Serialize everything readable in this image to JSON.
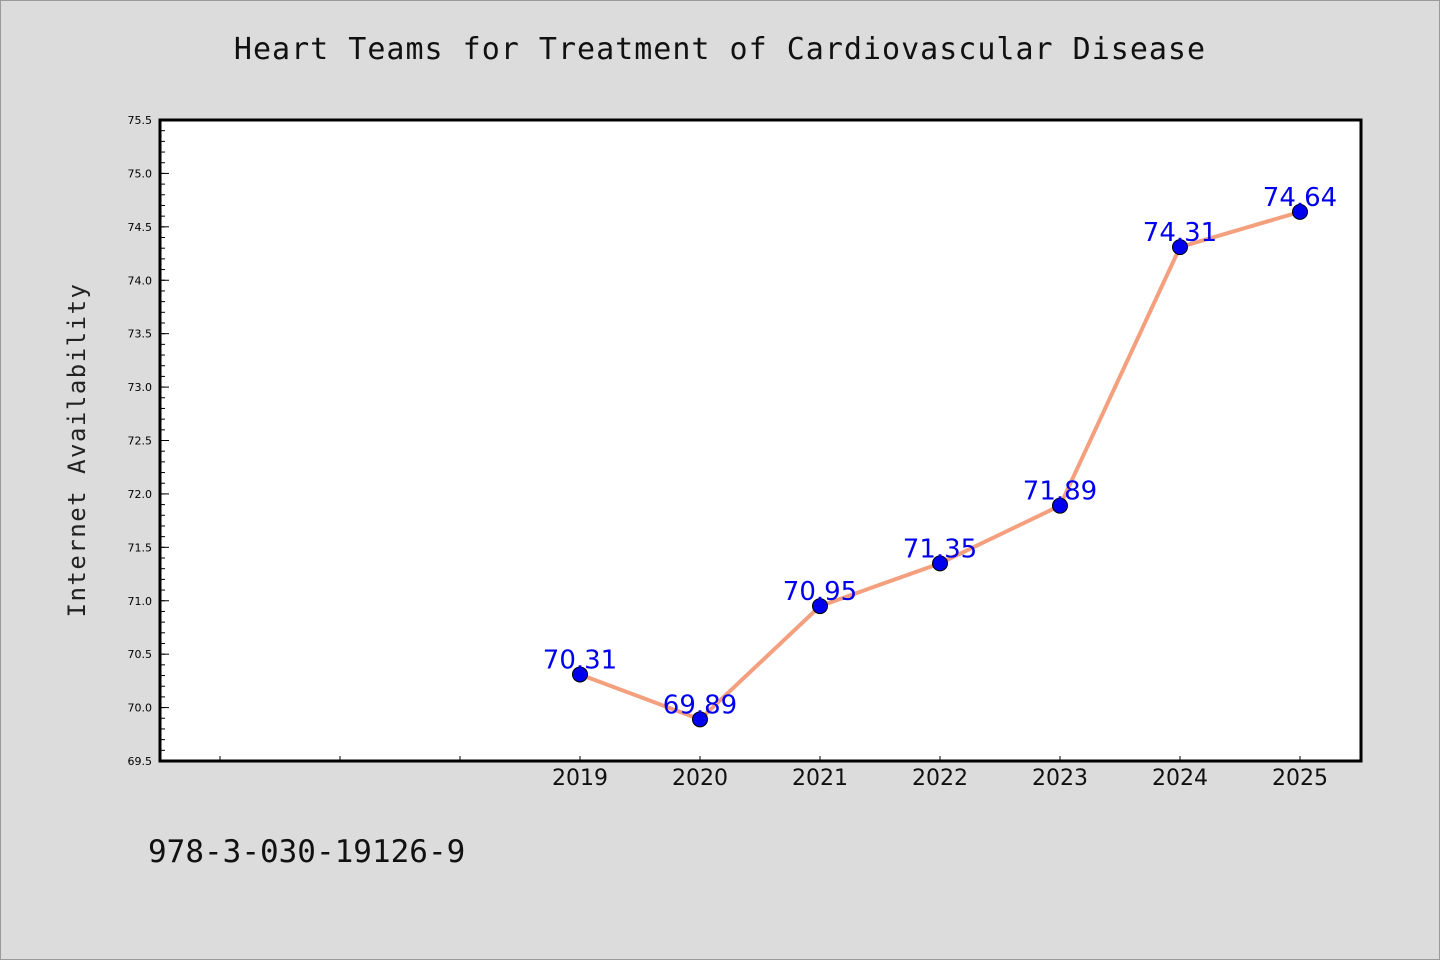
{
  "chart_data": {
    "type": "line",
    "title": "Heart Teams for Treatment of Cardiovascular Disease",
    "xlabel": "",
    "ylabel": "Internet Availability",
    "categories": [
      "2019",
      "2020",
      "2021",
      "2022",
      "2023",
      "2024",
      "2025"
    ],
    "series": [
      {
        "values": [
          70.31,
          69.89,
          70.95,
          71.35,
          71.89,
          74.31,
          74.64
        ],
        "data_labels": [
          "70.31",
          "69.89",
          "70.95",
          "71.35",
          "71.89",
          "74.31",
          "74.64"
        ],
        "line_color": "#f4a07e",
        "marker_color": "#0000ee"
      }
    ],
    "ylim": [
      69.5,
      75.5
    ],
    "yticks": [
      "69.5",
      "70.0",
      "70.5",
      "71.0",
      "71.5",
      "72.0",
      "72.5",
      "73.0",
      "73.5",
      "74.0",
      "74.5",
      "75.0",
      "75.5"
    ],
    "grid": false,
    "legend": "none",
    "plot_background": "#ffffff",
    "figure_background": "#dcdcdc",
    "label_color": "#0000ee"
  },
  "footer": {
    "code": "978-3-030-19126-9"
  }
}
